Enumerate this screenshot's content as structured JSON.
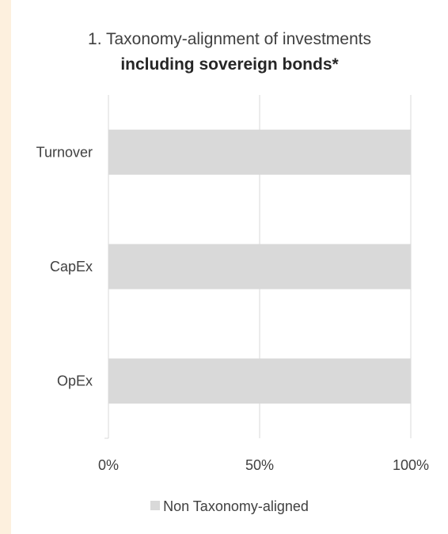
{
  "chart_data": {
    "type": "bar",
    "orientation": "horizontal",
    "stacked": true,
    "title": "1. Taxonomy-alignment of investments",
    "subtitle": "including sovereign bonds*",
    "categories": [
      "Turnover",
      "CapEx",
      "OpEx"
    ],
    "series": [
      {
        "name": "Non Taxonomy-aligned",
        "values": [
          100,
          100,
          100
        ],
        "color": "#d9d9d9"
      }
    ],
    "xlim": [
      0,
      100
    ],
    "xticks": [
      0,
      50,
      100
    ],
    "xtick_labels": [
      "0%",
      "50%",
      "100%"
    ],
    "grid": "vertical",
    "legend": "bottom"
  }
}
